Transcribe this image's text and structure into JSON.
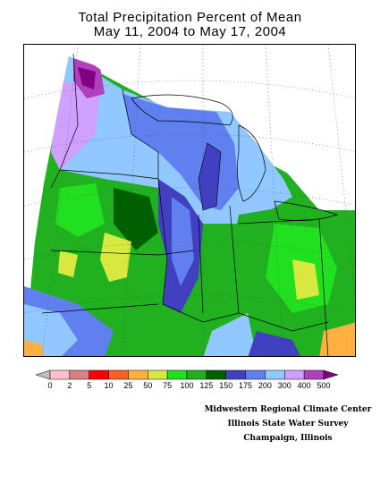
{
  "title_line1": "Total Precipitation Percent of Mean",
  "title_line2": "May 11, 2004 to May 17, 2004",
  "legend": {
    "labels": [
      "0",
      "2",
      "5",
      "10",
      "25",
      "50",
      "75",
      "100",
      "125",
      "150",
      "175",
      "200",
      "300",
      "400",
      "500"
    ],
    "colors": [
      "#bdbdbd",
      "#ffc0cb",
      "#d98080",
      "#ff0000",
      "#ff6020",
      "#ffb040",
      "#d8e840",
      "#20e020",
      "#20b020",
      "#006000",
      "#4040c0",
      "#6080f0",
      "#90c8ff",
      "#d0a0ff",
      "#b040c0",
      "#800080"
    ]
  },
  "credits": {
    "line1": "Midwestern Regional Climate Center",
    "line2": "Illinois State Water Survey",
    "line3": "Champaign, Illinois"
  }
}
